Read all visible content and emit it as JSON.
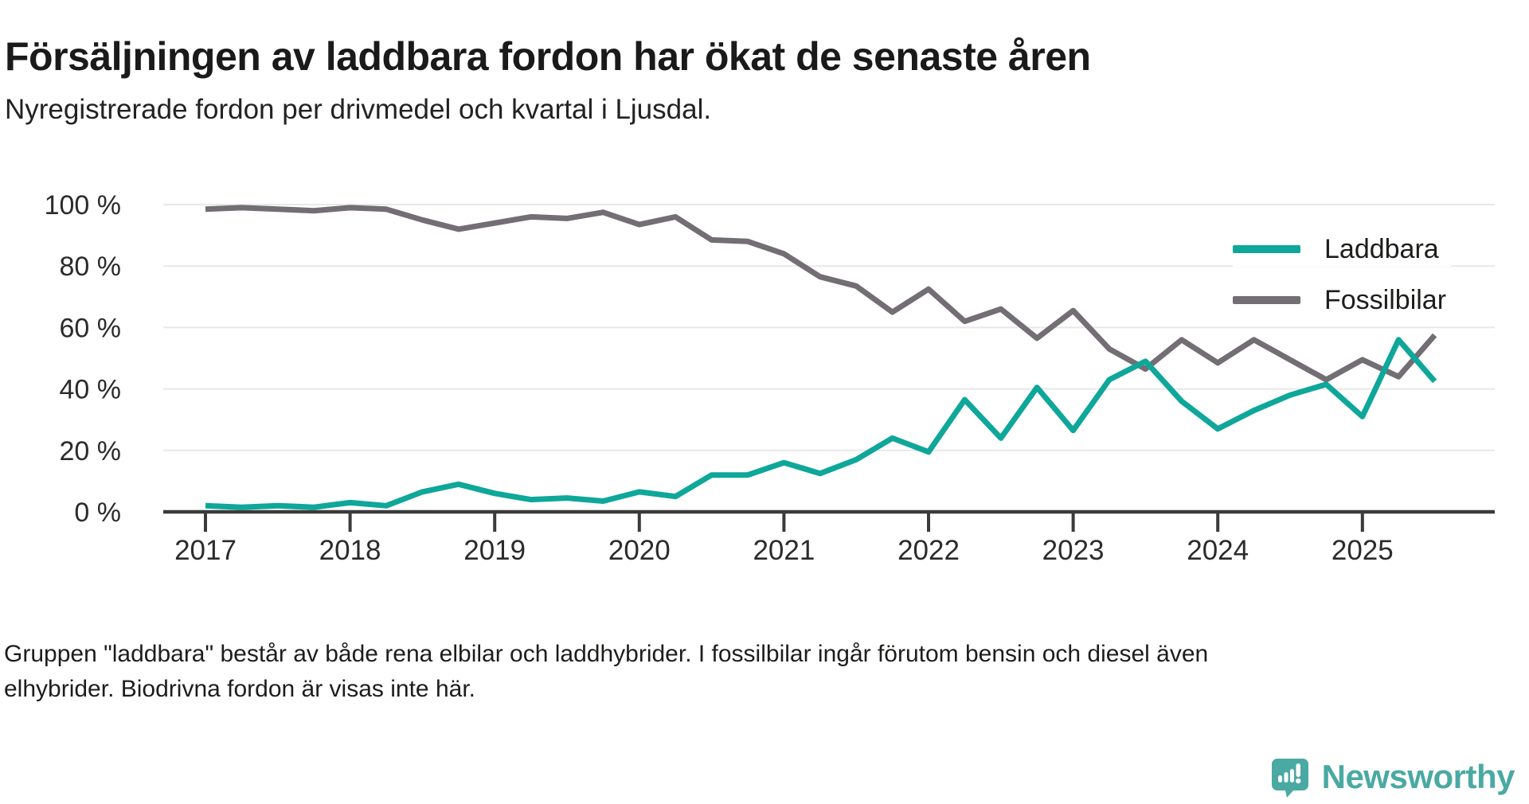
{
  "title": "Försäljningen av laddbara fordon har ökat de senaste åren",
  "subtitle": "Nyregistrerade fordon per drivmedel och kvartal i Ljusdal.",
  "footnote": {
    "line1": "Gruppen \"laddbara\" består av både rena elbilar och laddhybrider. I fossilbilar ingår förutom bensin och diesel även",
    "line2": "elhybrider. Biodrivna fordon är visas inte här."
  },
  "brand": {
    "name": "Newsworthy",
    "color": "#4aa9a3"
  },
  "colors": {
    "laddbara": "#0ea79a",
    "fossilbilar": "#726e74",
    "grid": "#e8e8e8",
    "axis": "#3a3a3a",
    "tick_text": "#2b2b2b"
  },
  "chart_data": {
    "type": "line",
    "title": "Nyregistrerade fordon per drivmedel och kvartal i Ljusdal",
    "x_unit": "kvartal",
    "y_unit": "%",
    "ylim": [
      0,
      100
    ],
    "grid": true,
    "legend_position": "top-right",
    "y_ticks": [
      0,
      20,
      40,
      60,
      80,
      100
    ],
    "y_tick_labels": [
      "0 %",
      "20 %",
      "40 %",
      "60 %",
      "80 %",
      "100 %"
    ],
    "year_tick_labels": [
      "2017",
      "2018",
      "2019",
      "2020",
      "2021",
      "2022",
      "2023",
      "2024",
      "2025"
    ],
    "quarters": [
      "2017Q1",
      "2017Q2",
      "2017Q3",
      "2017Q4",
      "2018Q1",
      "2018Q2",
      "2018Q3",
      "2018Q4",
      "2019Q1",
      "2019Q2",
      "2019Q3",
      "2019Q4",
      "2020Q1",
      "2020Q2",
      "2020Q3",
      "2020Q4",
      "2021Q1",
      "2021Q2",
      "2021Q3",
      "2021Q4",
      "2022Q1",
      "2022Q2",
      "2022Q3",
      "2022Q4",
      "2023Q1",
      "2023Q2",
      "2023Q3",
      "2023Q4",
      "2024Q1",
      "2024Q2",
      "2024Q3",
      "2024Q4",
      "2025Q1",
      "2025Q2",
      "2025Q3"
    ],
    "series": [
      {
        "name": "Laddbara",
        "color": "#0ea79a",
        "values": [
          2,
          1.5,
          2,
          1.5,
          3,
          2,
          6.5,
          9,
          6,
          4,
          4.5,
          3.5,
          6.5,
          5,
          12,
          12,
          16,
          12.5,
          17,
          24,
          19.5,
          36.5,
          24,
          40.5,
          26.5,
          43,
          49,
          36,
          27,
          33,
          38,
          41.5,
          31,
          56,
          42.5
        ]
      },
      {
        "name": "Fossilbilar",
        "color": "#726e74",
        "values": [
          98.5,
          99,
          98.5,
          98,
          99,
          98.5,
          95,
          92,
          94,
          96,
          95.5,
          97.5,
          93.5,
          96,
          88.5,
          88,
          84,
          76.5,
          73.5,
          65,
          72.5,
          62,
          66,
          56.5,
          65.5,
          53,
          46.5,
          56,
          48.5,
          56,
          49.5,
          43,
          49.5,
          44,
          57.5
        ]
      }
    ]
  }
}
